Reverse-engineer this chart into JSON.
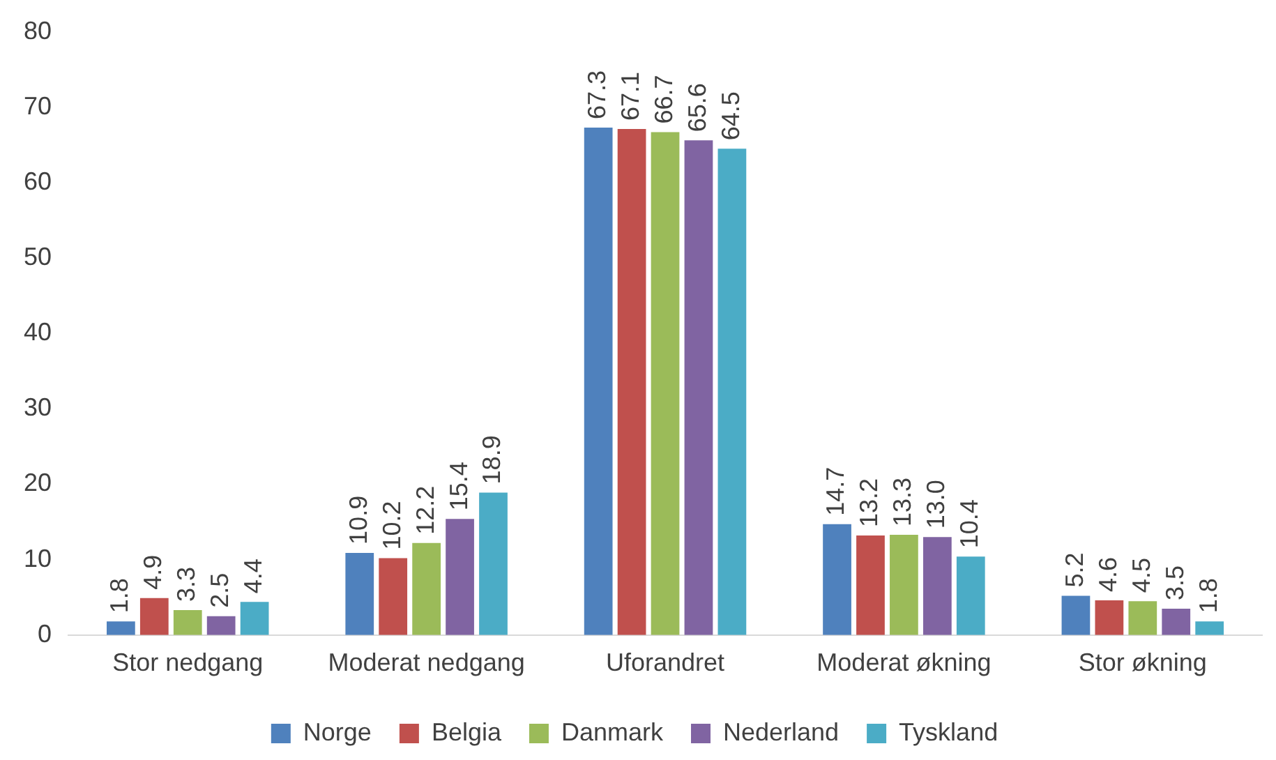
{
  "chart_data": {
    "type": "bar",
    "categories": [
      "Stor nedgang",
      "Moderat nedgang",
      "Uforandret",
      "Moderat økning",
      "Stor økning"
    ],
    "series": [
      {
        "name": "Norge",
        "color": "#4f81bd",
        "values": [
          1.8,
          10.9,
          67.3,
          14.7,
          5.2
        ],
        "value_labels": [
          "1.8",
          "10.9",
          "67.3",
          "14.7",
          "5.2"
        ]
      },
      {
        "name": "Belgia",
        "color": "#c0504d",
        "values": [
          4.9,
          10.2,
          67.1,
          13.2,
          4.6
        ],
        "value_labels": [
          "4.9",
          "10.2",
          "67.1",
          "13.2",
          "4.6"
        ]
      },
      {
        "name": "Danmark",
        "color": "#9bbb59",
        "values": [
          3.3,
          12.2,
          66.7,
          13.3,
          4.5
        ],
        "value_labels": [
          "3.3",
          "12.2",
          "66.7",
          "13.3",
          "4.5"
        ]
      },
      {
        "name": "Nederland",
        "color": "#8064a2",
        "values": [
          2.5,
          15.4,
          65.6,
          13.0,
          3.5
        ],
        "value_labels": [
          "2.5",
          "15.4",
          "65.6",
          "13.0",
          "3.5"
        ]
      },
      {
        "name": "Tyskland",
        "color": "#4bacc6",
        "values": [
          4.4,
          18.9,
          64.5,
          10.4,
          1.8
        ],
        "value_labels": [
          "4.4",
          "18.9",
          "64.5",
          "10.4",
          "1.8"
        ]
      }
    ],
    "ylim": [
      0,
      80
    ],
    "yticks": [
      0,
      10,
      20,
      30,
      40,
      50,
      60,
      70,
      80
    ],
    "grid": false,
    "legend": "bottom"
  }
}
